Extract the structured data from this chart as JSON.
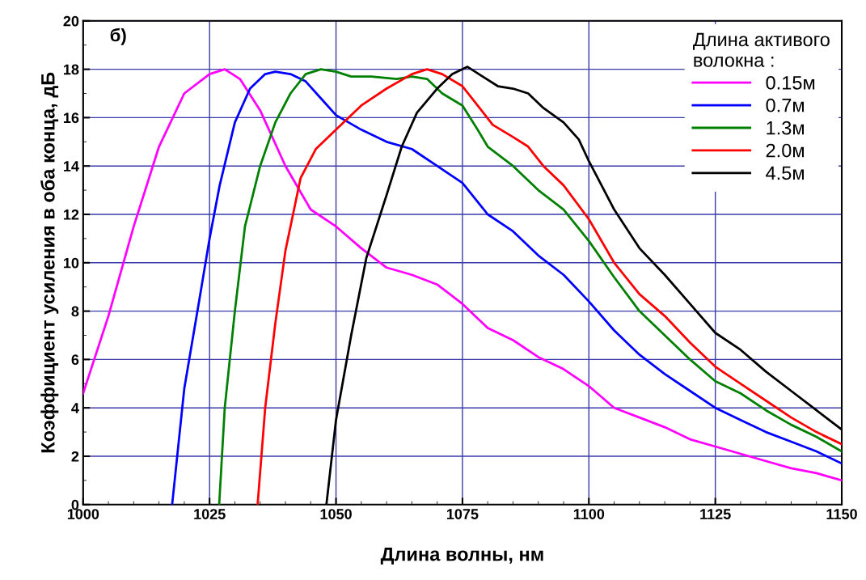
{
  "chart_data": {
    "type": "line",
    "xlabel": "Длина волны, нм",
    "ylabel": "Коэффициент усиления в оба конца, дБ",
    "legend_title": "Длина активого\nволокна :",
    "annotations": [
      "б)"
    ],
    "xlim": [
      1000,
      1150
    ],
    "xticks": [
      1000,
      1025,
      1050,
      1075,
      1100,
      1125,
      1150
    ],
    "ylim": [
      0,
      20
    ],
    "yticks": [
      0,
      2,
      4,
      6,
      8,
      10,
      12,
      14,
      16,
      18,
      20
    ],
    "grid": true,
    "legend": "top right",
    "marker": "none",
    "line_style": "solid",
    "series": [
      {
        "name": "0.15м",
        "color": "#ff00ff",
        "x": [
          1000,
          1005,
          1010,
          1015,
          1020,
          1025,
          1028,
          1031,
          1035,
          1040,
          1045,
          1050,
          1055,
          1060,
          1065,
          1070,
          1075,
          1080,
          1085,
          1090,
          1095,
          1100,
          1105,
          1110,
          1115,
          1120,
          1125,
          1130,
          1135,
          1140,
          1145,
          1150
        ],
        "values": [
          4.6,
          7.8,
          11.5,
          14.8,
          17.0,
          17.8,
          18.0,
          17.6,
          16.3,
          14.0,
          12.2,
          11.5,
          10.6,
          9.8,
          9.5,
          9.1,
          8.3,
          7.3,
          6.8,
          6.1,
          5.6,
          4.9,
          4.0,
          3.6,
          3.2,
          2.7,
          2.4,
          2.1,
          1.8,
          1.5,
          1.3,
          1.0
        ]
      },
      {
        "name": "0.7м",
        "color": "#0000ff",
        "x": [
          1017.6,
          1020,
          1023,
          1025,
          1027,
          1030,
          1033,
          1036,
          1038,
          1041,
          1044,
          1047,
          1050,
          1055,
          1060,
          1065,
          1070,
          1075,
          1080,
          1085,
          1090,
          1095,
          1100,
          1105,
          1110,
          1115,
          1120,
          1125,
          1130,
          1135,
          1140,
          1145,
          1150
        ],
        "values": [
          0,
          4.8,
          8.5,
          11.0,
          13.2,
          15.8,
          17.2,
          17.8,
          17.9,
          17.8,
          17.5,
          16.8,
          16.1,
          15.5,
          15.0,
          14.7,
          14.0,
          13.3,
          12.0,
          11.3,
          10.3,
          9.5,
          8.4,
          7.2,
          6.2,
          5.4,
          4.7,
          4.0,
          3.5,
          3.0,
          2.6,
          2.2,
          1.7
        ]
      },
      {
        "name": "1.3м",
        "color": "#008000",
        "x": [
          1026.9,
          1028,
          1030,
          1032,
          1035,
          1038,
          1041,
          1044,
          1047,
          1050,
          1053,
          1057,
          1062,
          1065,
          1068,
          1071,
          1075,
          1078,
          1080,
          1085,
          1090,
          1095,
          1100,
          1105,
          1110,
          1115,
          1120,
          1125,
          1130,
          1135,
          1140,
          1145,
          1150
        ],
        "values": [
          0,
          4.0,
          8.0,
          11.5,
          14.0,
          15.8,
          17.0,
          17.8,
          18.0,
          17.9,
          17.7,
          17.7,
          17.6,
          17.7,
          17.6,
          17.0,
          16.5,
          15.5,
          14.8,
          14.0,
          13.0,
          12.2,
          10.9,
          9.4,
          8.0,
          7.0,
          6.0,
          5.1,
          4.6,
          3.9,
          3.3,
          2.8,
          2.2
        ]
      },
      {
        "name": "2.0м",
        "color": "#ff0000",
        "x": [
          1034.5,
          1036,
          1038,
          1040,
          1043,
          1046,
          1050,
          1055,
          1060,
          1065,
          1068,
          1071,
          1075,
          1078,
          1081,
          1085,
          1088,
          1091,
          1095,
          1100,
          1105,
          1110,
          1115,
          1120,
          1125,
          1130,
          1135,
          1140,
          1145,
          1150
        ],
        "values": [
          0,
          4.0,
          7.5,
          10.5,
          13.5,
          14.7,
          15.5,
          16.5,
          17.2,
          17.8,
          18.0,
          17.8,
          17.3,
          16.5,
          15.7,
          15.2,
          14.8,
          14.0,
          13.2,
          11.8,
          10.0,
          8.7,
          7.8,
          6.7,
          5.7,
          5.0,
          4.3,
          3.6,
          3.0,
          2.5
        ]
      },
      {
        "name": "4.5м",
        "color": "#000000",
        "x": [
          1048.1,
          1050,
          1053,
          1056,
          1060,
          1063,
          1066,
          1070,
          1073,
          1076,
          1079,
          1082,
          1085,
          1088,
          1091,
          1095,
          1098,
          1100,
          1105,
          1110,
          1115,
          1120,
          1125,
          1130,
          1135,
          1140,
          1145,
          1150
        ],
        "values": [
          0,
          3.5,
          7.0,
          10.2,
          12.8,
          14.8,
          16.2,
          17.2,
          17.8,
          18.1,
          17.7,
          17.3,
          17.2,
          17.0,
          16.4,
          15.8,
          15.1,
          14.2,
          12.2,
          10.6,
          9.5,
          8.3,
          7.1,
          6.4,
          5.5,
          4.7,
          3.9,
          3.1
        ]
      }
    ]
  }
}
